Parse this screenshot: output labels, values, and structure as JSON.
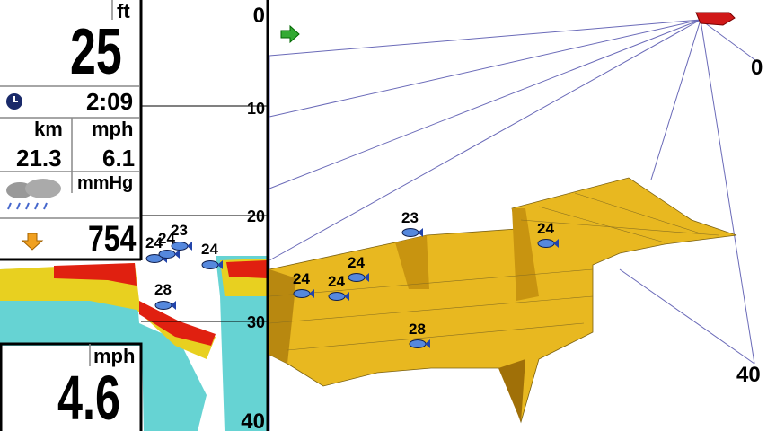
{
  "left_panel": {
    "depth_unit": "ft",
    "depth": "25",
    "time": "2:09",
    "distance_unit": "km",
    "speed_unit": "mph",
    "distance": "21.3",
    "speed": "6.1",
    "pressure_unit": "mmHg",
    "pressure": "754",
    "lower_speed_unit": "mph",
    "lower_speed": "4.6"
  },
  "sonar": {
    "depth_scale": [
      "0",
      "10",
      "20",
      "30",
      "40"
    ],
    "fish": [
      "24",
      "24",
      "23",
      "24",
      "28"
    ]
  },
  "view_3d": {
    "scale": [
      "0",
      "40"
    ],
    "fish": [
      "23",
      "24",
      "24",
      "24",
      "24",
      "28"
    ]
  }
}
